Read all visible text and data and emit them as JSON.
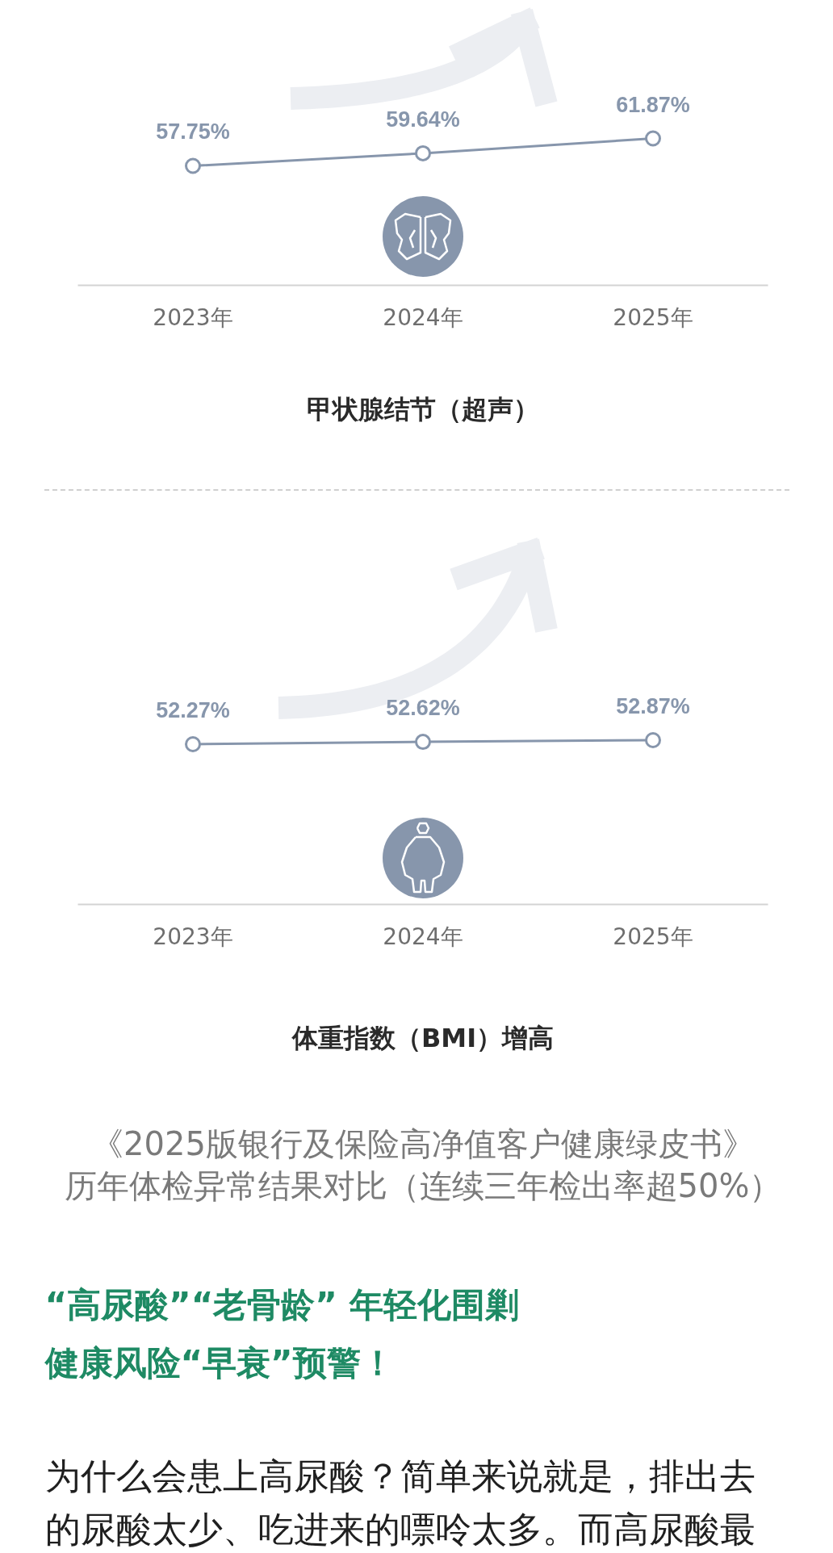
{
  "chart_data": [
    {
      "type": "line",
      "title": "甲状腺结节（超声）",
      "categories": [
        "2023年",
        "2024年",
        "2025年"
      ],
      "values": [
        57.75,
        59.64,
        61.87
      ],
      "value_labels": [
        "57.75%",
        "59.64%",
        "61.87%"
      ],
      "color": "#8796ac",
      "marker": "circle",
      "tick_labels": "x"
    },
    {
      "type": "line",
      "title": "体重指数（BMI）增高",
      "categories": [
        "2023年",
        "2024年",
        "2025年"
      ],
      "values": [
        52.27,
        52.62,
        52.87
      ],
      "value_labels": [
        "52.27%",
        "52.62%",
        "52.87%"
      ],
      "color": "#8796ac",
      "marker": "circle",
      "tick_labels": "x",
      "annotations": [
        "《2025版银行及保险高净值客户健康绿皮书》",
        "历年体检异常结果对比（连续三年检出率超50%）"
      ]
    },
    {
      "type": "other",
      "title": "“高尿酸”“老骨龄” 年轻化围剿",
      "subtitle": "健康风险“早衰”预警！",
      "annotations": [
        "为什么会患上高尿酸？简单来说就是，排出去",
        "的尿酸太少、吃进来的嘌呤太多。而高尿酸最"
      ]
    }
  ]
}
